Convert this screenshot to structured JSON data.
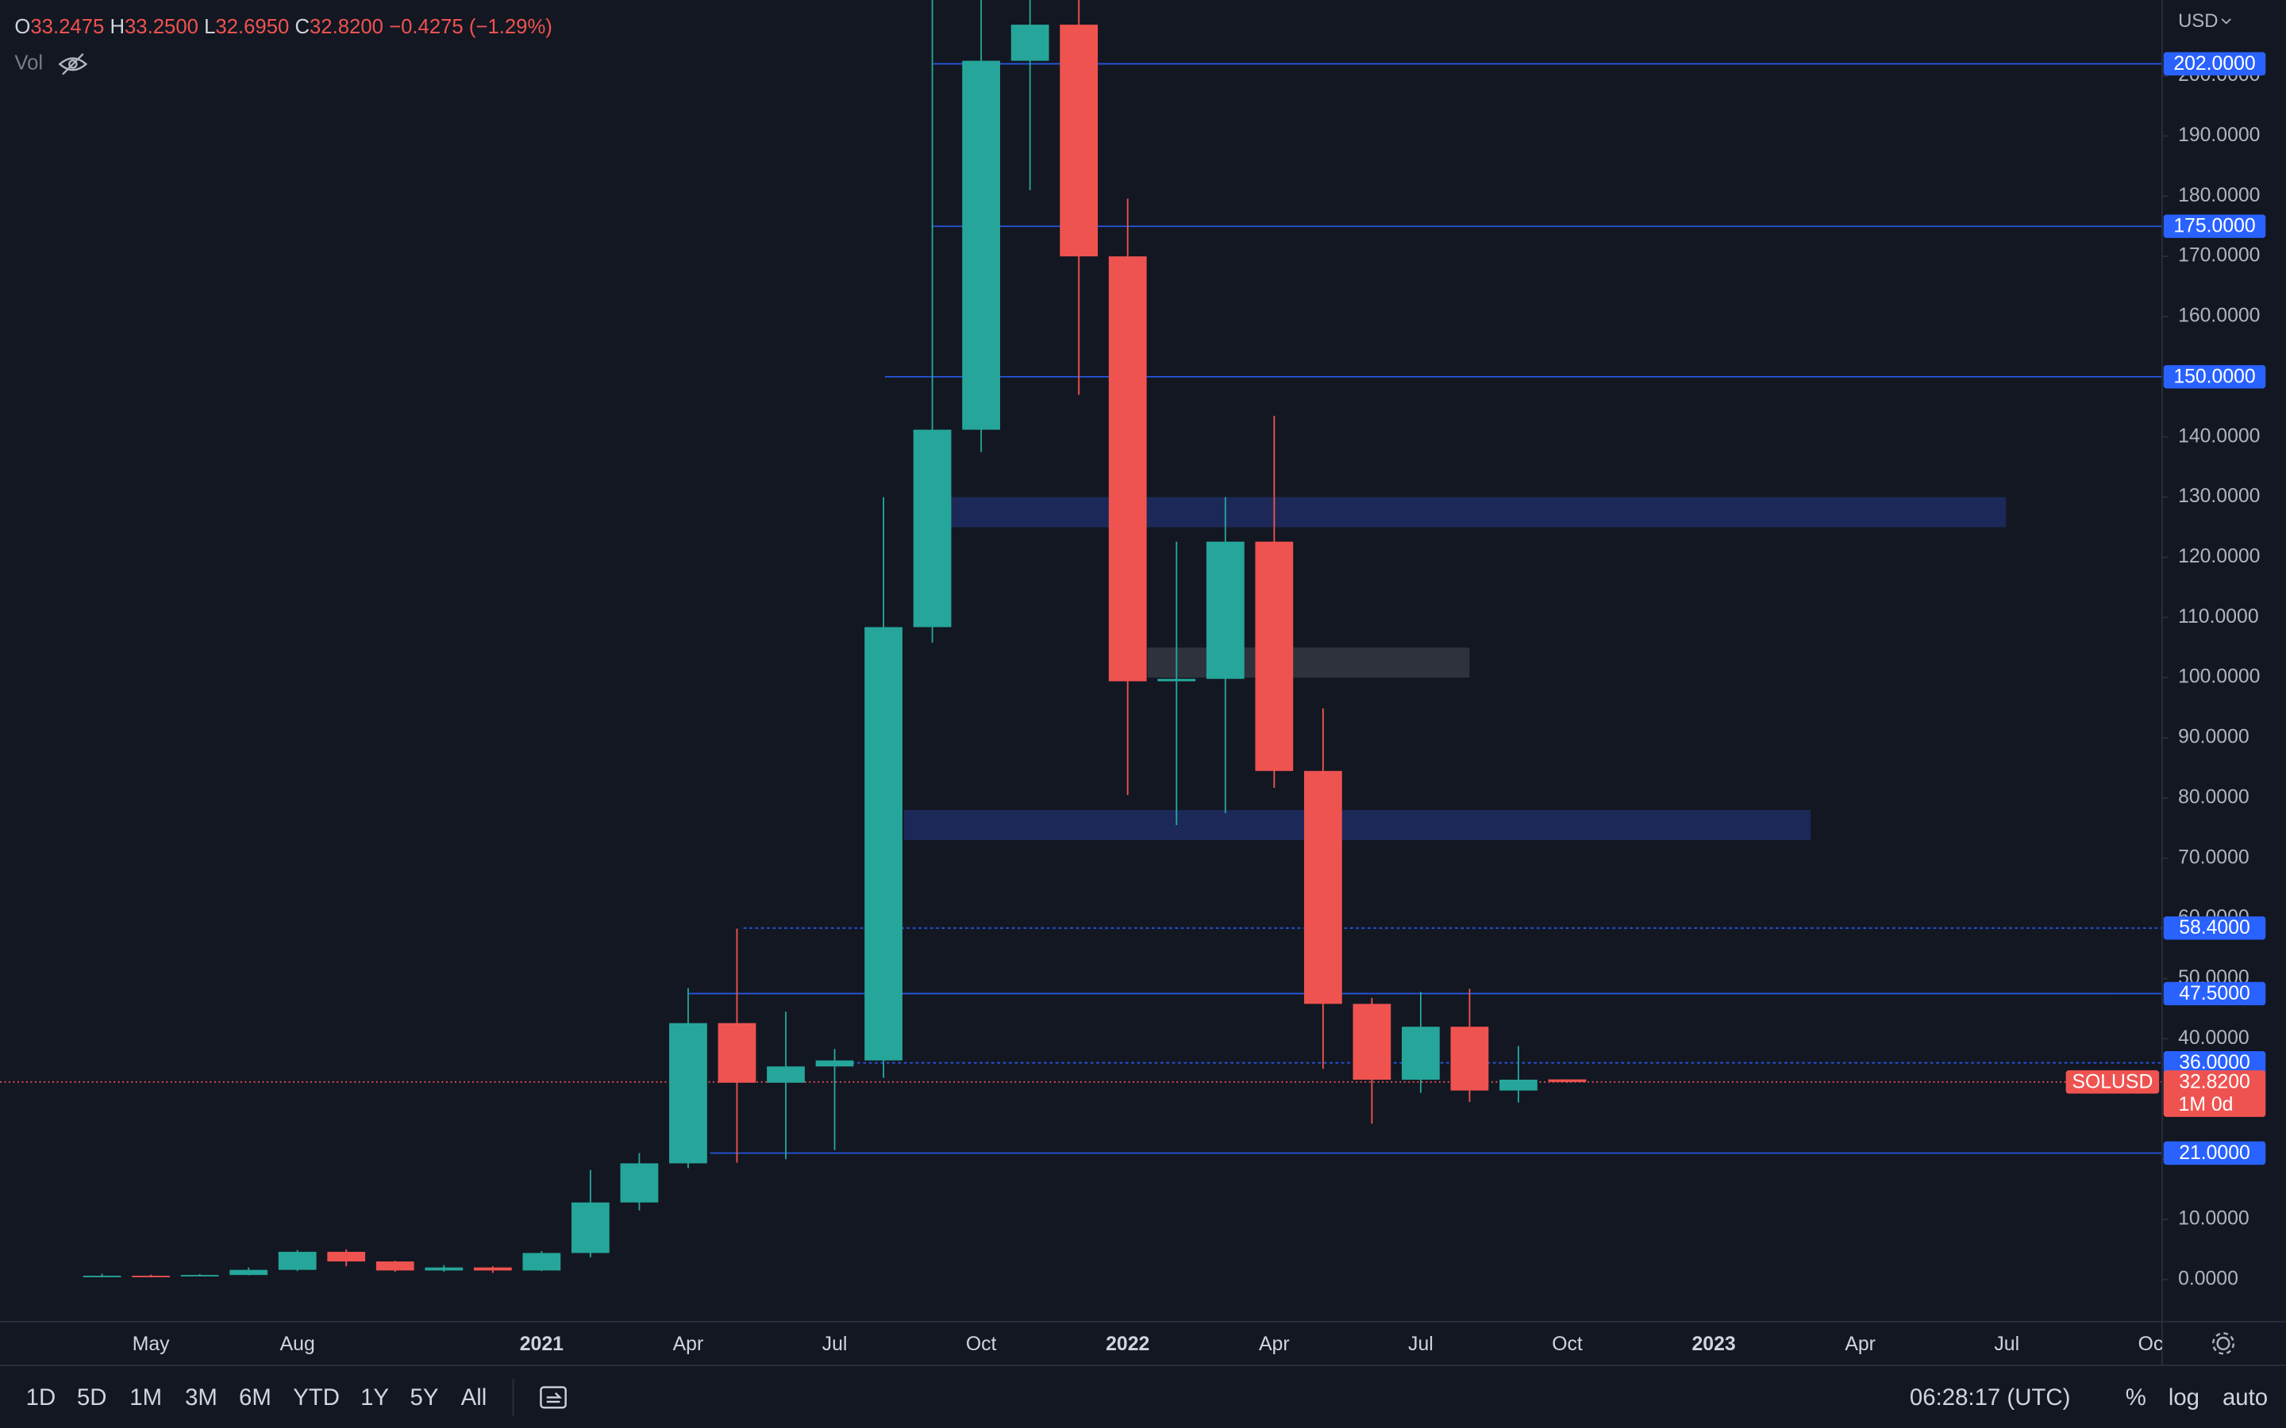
{
  "header": {
    "open_label": "O",
    "open": "33.2475",
    "high_label": "H",
    "high": "33.2500",
    "low_label": "L",
    "low": "32.6950",
    "close_label": "C",
    "close": "32.8200",
    "change": "−0.4275 (−1.29%)",
    "volume": "Vol"
  },
  "currency": "USD",
  "toolbar": {
    "ranges": [
      "1D",
      "5D",
      "1M",
      "3M",
      "6M",
      "YTD",
      "1Y",
      "5Y",
      "All"
    ],
    "clock": "06:28:17 (UTC)",
    "percent": "%",
    "log": "log",
    "auto": "auto"
  },
  "chart_data": {
    "type": "candlestick",
    "symbol": "SOLUSD",
    "countdown": "1M 0d",
    "up_color": "#26a69a",
    "down_color": "#ef5350",
    "level_color": "#2962ff",
    "zone_color": "#1e2b5e",
    "neutral_zone_color": "#363a45",
    "categories": [
      null,
      "May",
      null,
      null,
      "Aug",
      null,
      null,
      null,
      null,
      "2021",
      null,
      null,
      "Apr",
      null,
      null,
      "Jul",
      null,
      null,
      "Oct",
      null,
      null,
      "2022",
      null,
      null,
      "Apr",
      null,
      null,
      "Jul",
      null,
      null,
      "Oct",
      null,
      null,
      "2023",
      null,
      null,
      "Apr",
      null,
      null,
      "Jul",
      null,
      null,
      "Oct"
    ],
    "open": [
      0.58,
      0.62,
      0.55,
      0.75,
      1.6,
      4.6,
      3.0,
      1.5,
      2.0,
      1.5,
      4.4,
      12.8,
      19.3,
      42.6,
      32.7,
      35.4,
      36.4,
      108.4,
      141.2,
      202.5,
      208.5,
      170.0,
      99.4,
      99.8,
      122.6,
      84.5,
      45.8,
      33.2,
      42.0,
      31.4,
      33.2475,
      null,
      null,
      null,
      null,
      null,
      null,
      null,
      null,
      null,
      null,
      null,
      null
    ],
    "high": [
      0.96,
      0.8,
      0.9,
      2.0,
      4.9,
      5.0,
      3.1,
      2.4,
      2.2,
      4.7,
      18.2,
      21.0,
      48.4,
      58.3,
      44.5,
      38.3,
      130.0,
      216.0,
      218.0,
      260.0,
      240.0,
      179.6,
      122.6,
      130.0,
      143.5,
      94.9,
      46.8,
      47.8,
      48.3,
      38.8,
      33.25,
      null,
      null,
      null,
      null,
      null,
      null,
      null,
      null,
      null,
      null,
      null,
      null
    ],
    "low": [
      0.5,
      0.5,
      0.5,
      0.7,
      1.4,
      2.2,
      1.3,
      1.3,
      1.1,
      1.4,
      3.7,
      11.5,
      18.5,
      19.4,
      20.0,
      21.5,
      33.5,
      105.8,
      137.5,
      181.0,
      147.0,
      80.5,
      75.5,
      77.5,
      81.7,
      35.0,
      25.9,
      31.0,
      29.5,
      29.4,
      32.695,
      null,
      null,
      null,
      null,
      null,
      null,
      null,
      null,
      null,
      null,
      null,
      null
    ],
    "close": [
      0.62,
      0.55,
      0.75,
      1.6,
      4.6,
      3.0,
      1.5,
      2.0,
      1.5,
      4.4,
      12.8,
      19.3,
      42.6,
      32.7,
      35.4,
      36.4,
      108.4,
      141.2,
      202.5,
      208.5,
      170.0,
      99.4,
      99.8,
      122.6,
      84.5,
      45.8,
      33.2,
      42.0,
      31.4,
      33.2,
      32.82,
      null,
      null,
      null,
      null,
      null,
      null,
      null,
      null,
      null,
      null,
      null,
      null
    ],
    "ylim": [
      -7.0,
      212.6
    ],
    "yticks": [
      {
        "value": 0,
        "label": "0.0000"
      },
      {
        "value": 10,
        "label": "10.0000"
      },
      {
        "value": 20,
        "label": "20.0000"
      },
      {
        "value": 30,
        "label": "30.0000"
      },
      {
        "value": 40,
        "label": "40.0000"
      },
      {
        "value": 50,
        "label": "50.0000"
      },
      {
        "value": 60,
        "label": "60.0000"
      },
      {
        "value": 70,
        "label": "70.0000"
      },
      {
        "value": 80,
        "label": "80.0000"
      },
      {
        "value": 90,
        "label": "90.0000"
      },
      {
        "value": 100,
        "label": "100.0000"
      },
      {
        "value": 110,
        "label": "110.0000"
      },
      {
        "value": 120,
        "label": "120.0000"
      },
      {
        "value": 130,
        "label": "130.0000"
      },
      {
        "value": 140,
        "label": "140.0000"
      },
      {
        "value": 150,
        "label": "150.0000"
      },
      {
        "value": 160,
        "label": "160.0000"
      },
      {
        "value": 170,
        "label": "170.0000"
      },
      {
        "value": 180,
        "label": "180.0000"
      },
      {
        "value": 190,
        "label": "190.0000"
      },
      {
        "value": 200,
        "label": "200.0000"
      }
    ],
    "levels": [
      {
        "value": 202,
        "label": "202.0000"
      },
      {
        "value": 175,
        "label": "175.0000"
      },
      {
        "value": 150,
        "label": "150.0000"
      },
      {
        "value": 58.4,
        "label": "58.4000"
      },
      {
        "value": 47.5,
        "label": "47.5000"
      },
      {
        "value": 36,
        "label": "36.0000"
      },
      {
        "value": 21,
        "label": "21.0000"
      }
    ],
    "zones": [
      {
        "low": 125,
        "high": 130
      },
      {
        "low": 73,
        "high": 78
      },
      {
        "low": 100,
        "high": 105
      }
    ],
    "last_price": {
      "value": 32.82,
      "label": "32.8200"
    }
  }
}
